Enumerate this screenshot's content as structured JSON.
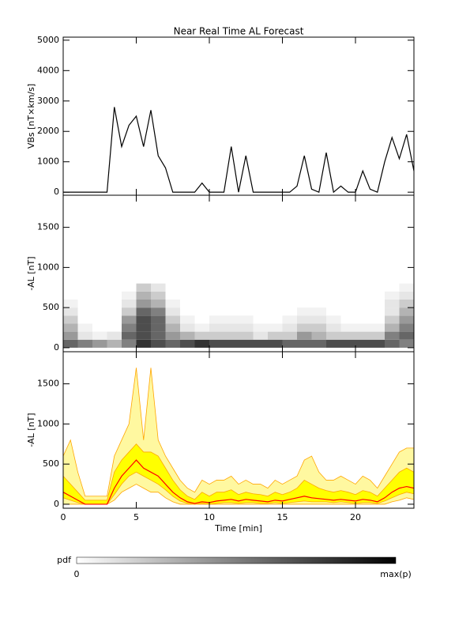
{
  "chart_data": [
    {
      "type": "line",
      "title": "Near Real Time AL Forecast",
      "ylabel": "VBs [nT×km/s]",
      "xlim": [
        0,
        24
      ],
      "xticks": [
        0,
        5,
        10,
        15,
        20
      ],
      "ylim": [
        -100,
        5100
      ],
      "yticks": [
        0,
        1000,
        2000,
        3000,
        4000,
        5000
      ],
      "x": [
        0,
        0.5,
        1,
        1.5,
        2,
        2.5,
        3,
        3.5,
        4,
        4.5,
        5,
        5.5,
        6,
        6.5,
        7,
        7.5,
        8,
        8.5,
        9,
        9.5,
        10,
        10.5,
        11,
        11.5,
        12,
        12.5,
        13,
        13.5,
        14,
        14.5,
        15,
        15.5,
        16,
        16.5,
        17,
        17.5,
        18,
        18.5,
        19,
        19.5,
        20,
        20.5,
        21,
        21.5,
        22,
        22.5,
        23,
        23.5,
        24
      ],
      "series": [
        {
          "color": "#000000",
          "values": [
            0,
            0,
            0,
            0,
            0,
            0,
            0,
            2800,
            1500,
            2200,
            2500,
            1500,
            2700,
            1200,
            800,
            0,
            0,
            0,
            0,
            300,
            0,
            0,
            0,
            1500,
            0,
            1200,
            0,
            0,
            0,
            0,
            0,
            0,
            200,
            1200,
            100,
            0,
            1300,
            0,
            200,
            0,
            0,
            700,
            100,
            0,
            1000,
            1800,
            1100,
            1900,
            700
          ]
        }
      ]
    },
    {
      "type": "heatmap",
      "ylabel": "-AL [nT]",
      "xlim": [
        0,
        24
      ],
      "xticks": [
        0,
        5,
        10,
        15,
        20
      ],
      "ylim": [
        -50,
        1900
      ],
      "yticks": [
        0,
        500,
        1000,
        1500
      ],
      "xbins": [
        0,
        1,
        2,
        3,
        4,
        5,
        6,
        7,
        8,
        9,
        10,
        11,
        12,
        13,
        14,
        15,
        16,
        17,
        18,
        19,
        20,
        21,
        22,
        23,
        24
      ],
      "ybins": [
        0,
        100,
        200,
        300,
        400,
        500,
        600,
        700,
        800
      ],
      "density": [
        [
          0.6,
          0.5,
          0.4,
          0.3,
          0.5,
          0.8,
          0.7,
          0.6,
          0.7,
          0.8,
          0.7,
          0.7,
          0.7,
          0.7,
          0.7,
          0.6,
          0.6,
          0.6,
          0.7,
          0.7,
          0.7,
          0.7,
          0.6,
          0.5
        ],
        [
          0.4,
          0.1,
          0.05,
          0.1,
          0.6,
          0.7,
          0.6,
          0.4,
          0.3,
          0.2,
          0.2,
          0.2,
          0.2,
          0.1,
          0.2,
          0.2,
          0.4,
          0.3,
          0.2,
          0.2,
          0.2,
          0.2,
          0.5,
          0.6
        ],
        [
          0.3,
          0.05,
          0,
          0,
          0.5,
          0.7,
          0.6,
          0.3,
          0.1,
          0.05,
          0.1,
          0.1,
          0.1,
          0.05,
          0.05,
          0.1,
          0.2,
          0.2,
          0.1,
          0.05,
          0.05,
          0.05,
          0.3,
          0.5
        ],
        [
          0.2,
          0,
          0,
          0,
          0.4,
          0.7,
          0.6,
          0.2,
          0.05,
          0,
          0.05,
          0.05,
          0.05,
          0,
          0,
          0.05,
          0.1,
          0.1,
          0.05,
          0,
          0,
          0,
          0.2,
          0.4
        ],
        [
          0.1,
          0,
          0,
          0,
          0.2,
          0.6,
          0.5,
          0.1,
          0,
          0,
          0,
          0,
          0,
          0,
          0,
          0,
          0.05,
          0.05,
          0,
          0,
          0,
          0,
          0.1,
          0.3
        ],
        [
          0.05,
          0,
          0,
          0,
          0.1,
          0.4,
          0.3,
          0.05,
          0,
          0,
          0,
          0,
          0,
          0,
          0,
          0,
          0,
          0,
          0,
          0,
          0,
          0,
          0.1,
          0.2
        ],
        [
          0,
          0,
          0,
          0,
          0.05,
          0.3,
          0.2,
          0,
          0,
          0,
          0,
          0,
          0,
          0,
          0,
          0,
          0,
          0,
          0,
          0,
          0,
          0,
          0.05,
          0.1
        ],
        [
          0,
          0,
          0,
          0,
          0,
          0.2,
          0.1,
          0,
          0,
          0,
          0,
          0,
          0,
          0,
          0,
          0,
          0,
          0,
          0,
          0,
          0,
          0,
          0,
          0.05
        ]
      ],
      "colorbar": {
        "label": "pdf",
        "min_label": "0",
        "max_label": "max(p)"
      }
    },
    {
      "type": "band",
      "ylabel": "-AL [nT]",
      "xlabel": "Time [min]",
      "xlim": [
        0,
        24
      ],
      "xticks": [
        0,
        5,
        10,
        15,
        20
      ],
      "ylim": [
        -50,
        1900
      ],
      "yticks": [
        0,
        500,
        1000,
        1500
      ],
      "x": [
        0,
        0.5,
        1,
        1.5,
        2,
        2.5,
        3,
        3.5,
        4,
        4.5,
        5,
        5.5,
        6,
        6.5,
        7,
        7.5,
        8,
        8.5,
        9,
        9.5,
        10,
        10.5,
        11,
        11.5,
        12,
        12.5,
        13,
        13.5,
        14,
        14.5,
        15,
        15.5,
        16,
        16.5,
        17,
        17.5,
        18,
        18.5,
        19,
        19.5,
        20,
        20.5,
        21,
        21.5,
        22,
        22.5,
        23,
        23.5,
        24
      ],
      "bands": [
        {
          "color": "#fff8a0",
          "edge": "#ffa500",
          "lower": [
            0,
            0,
            0,
            0,
            0,
            0,
            0,
            50,
            150,
            200,
            250,
            200,
            150,
            150,
            80,
            30,
            0,
            0,
            0,
            0,
            0,
            0,
            0,
            0,
            0,
            0,
            0,
            0,
            0,
            0,
            0,
            0,
            0,
            0,
            0,
            0,
            0,
            0,
            0,
            0,
            0,
            0,
            0,
            0,
            0,
            30,
            50,
            80,
            60
          ],
          "upper": [
            600,
            800,
            400,
            100,
            100,
            100,
            100,
            600,
            800,
            1000,
            1700,
            800,
            1700,
            800,
            600,
            450,
            300,
            200,
            150,
            300,
            250,
            300,
            300,
            350,
            250,
            300,
            250,
            250,
            200,
            300,
            250,
            300,
            350,
            550,
            600,
            400,
            300,
            300,
            350,
            300,
            250,
            350,
            300,
            200,
            350,
            500,
            650,
            700,
            700
          ]
        },
        {
          "color": "#ffff00",
          "edge": "#ffa500",
          "lower": [
            80,
            50,
            20,
            0,
            0,
            0,
            0,
            120,
            250,
            350,
            400,
            350,
            300,
            250,
            180,
            100,
            40,
            10,
            0,
            10,
            0,
            10,
            20,
            20,
            10,
            20,
            20,
            10,
            10,
            20,
            10,
            20,
            30,
            40,
            30,
            30,
            30,
            20,
            30,
            20,
            10,
            20,
            20,
            10,
            40,
            80,
            120,
            150,
            130
          ],
          "upper": [
            350,
            250,
            150,
            50,
            50,
            50,
            50,
            400,
            550,
            650,
            750,
            650,
            650,
            600,
            450,
            300,
            180,
            100,
            60,
            150,
            100,
            150,
            150,
            180,
            120,
            150,
            130,
            120,
            100,
            150,
            120,
            150,
            200,
            300,
            250,
            200,
            170,
            150,
            170,
            150,
            120,
            170,
            150,
            100,
            200,
            300,
            400,
            450,
            400
          ]
        }
      ],
      "series": [
        {
          "color": "#ff0000",
          "values": [
            150,
            100,
            50,
            0,
            0,
            0,
            0,
            200,
            350,
            450,
            550,
            450,
            400,
            350,
            250,
            150,
            80,
            30,
            10,
            30,
            20,
            40,
            50,
            60,
            40,
            60,
            50,
            40,
            30,
            50,
            40,
            60,
            80,
            100,
            80,
            70,
            60,
            50,
            60,
            50,
            40,
            60,
            50,
            30,
            80,
            150,
            200,
            220,
            200
          ]
        }
      ]
    }
  ]
}
